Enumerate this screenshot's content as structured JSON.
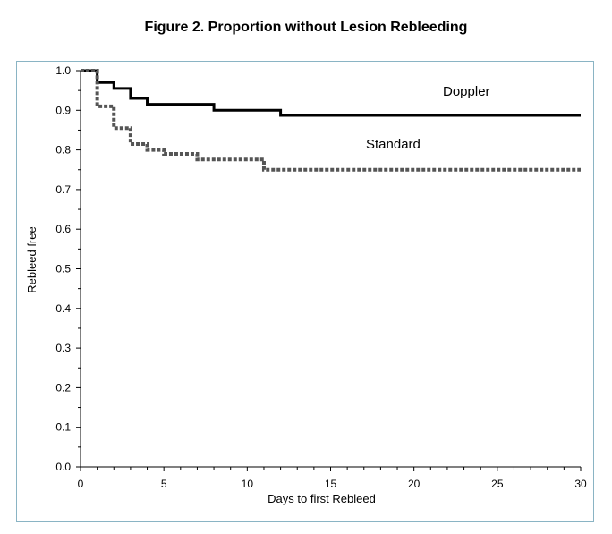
{
  "title": "Figure 2. Proportion without Lesion Rebleeding",
  "chart_data": {
    "type": "line",
    "step": true,
    "xlabel": "Days to first Rebleed",
    "ylabel": "Rebleed free",
    "xlim": [
      0,
      30
    ],
    "ylim": [
      0,
      1.0
    ],
    "xticks": [
      0,
      5,
      10,
      15,
      20,
      25,
      30
    ],
    "yticks": [
      0.0,
      0.1,
      0.2,
      0.3,
      0.4,
      0.5,
      0.6,
      0.7,
      0.8,
      0.9,
      1.0
    ],
    "grid": false,
    "series": [
      {
        "name": "Doppler",
        "style": "solid",
        "color": "#000000",
        "points": [
          [
            0,
            1.0
          ],
          [
            1,
            0.97
          ],
          [
            2,
            0.955
          ],
          [
            3,
            0.93
          ],
          [
            4,
            0.915
          ],
          [
            8,
            0.9
          ],
          [
            12,
            0.887
          ],
          [
            30,
            0.887
          ]
        ]
      },
      {
        "name": "Standard",
        "style": "dotted",
        "color": "#555555",
        "points": [
          [
            0,
            1.0
          ],
          [
            1,
            0.91
          ],
          [
            2,
            0.855
          ],
          [
            3,
            0.815
          ],
          [
            4,
            0.8
          ],
          [
            5,
            0.79
          ],
          [
            7,
            0.776
          ],
          [
            11,
            0.75
          ],
          [
            30,
            0.75
          ]
        ]
      }
    ]
  }
}
